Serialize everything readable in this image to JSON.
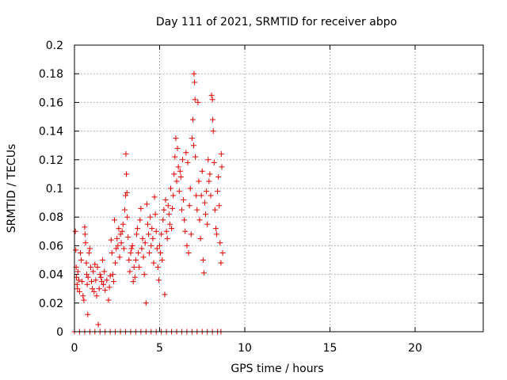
{
  "chart_data": {
    "type": "scatter",
    "title": "Day 111 of 2021, SRMTID for receiver abpo",
    "xlabel": "GPS time / hours",
    "ylabel": "SRMTID / TECUs",
    "xlim": [
      0,
      24
    ],
    "ylim": [
      0,
      0.2
    ],
    "xticks": [
      0,
      5,
      10,
      15,
      20
    ],
    "yticks": [
      0,
      0.02,
      0.04,
      0.06,
      0.08,
      0.1,
      0.12,
      0.14,
      0.16,
      0.18,
      0.2
    ],
    "ytick_labels": [
      "0",
      "0.02",
      "0.04",
      "0.06",
      "0.08",
      "0.1",
      "0.12",
      "0.14",
      "0.16",
      "0.18",
      "0.2"
    ],
    "grid": true,
    "marker": "+",
    "color": "#e00000",
    "series": [
      {
        "name": "SRMTID",
        "points": [
          [
            0.05,
            0.07
          ],
          [
            0.08,
            0.057
          ],
          [
            0.1,
            0.045
          ],
          [
            0.12,
            0.038
          ],
          [
            0.15,
            0.033
          ],
          [
            0.18,
            0.03
          ],
          [
            0.2,
            0.042
          ],
          [
            0.25,
            0.036
          ],
          [
            0.3,
            0.028
          ],
          [
            0.35,
            0.055
          ],
          [
            0.4,
            0.05
          ],
          [
            0.45,
            0.035
          ],
          [
            0.5,
            0.025
          ],
          [
            0.55,
            0.022
          ],
          [
            0.6,
            0.073
          ],
          [
            0.62,
            0.068
          ],
          [
            0.65,
            0.062
          ],
          [
            0.7,
            0.048
          ],
          [
            0.72,
            0.04
          ],
          [
            0.75,
            0.033
          ],
          [
            0.78,
            0.012
          ],
          [
            0.8,
            0.038
          ],
          [
            0.85,
            0.055
          ],
          [
            0.9,
            0.058
          ],
          [
            0.95,
            0.045
          ],
          [
            1.0,
            0.035
          ],
          [
            1.05,
            0.03
          ],
          [
            1.1,
            0.042
          ],
          [
            1.15,
            0.028
          ],
          [
            1.2,
            0.047
          ],
          [
            1.25,
            0.036
          ],
          [
            1.3,
            0.025
          ],
          [
            1.35,
            0.045
          ],
          [
            1.4,
            0.005
          ],
          [
            1.45,
            0.03
          ],
          [
            1.5,
            0.04
          ],
          [
            1.55,
            0.038
          ],
          [
            1.6,
            0.035
          ],
          [
            1.65,
            0.05
          ],
          [
            1.7,
            0.033
          ],
          [
            1.75,
            0.042
          ],
          [
            1.8,
            0.029
          ],
          [
            1.9,
            0.036
          ],
          [
            2.0,
            0.022
          ],
          [
            2.05,
            0.031
          ],
          [
            2.1,
            0.039
          ],
          [
            2.15,
            0.064
          ],
          [
            2.2,
            0.055
          ],
          [
            2.25,
            0.04
          ],
          [
            2.3,
            0.035
          ],
          [
            2.35,
            0.078
          ],
          [
            2.4,
            0.048
          ],
          [
            2.45,
            0.058
          ],
          [
            2.5,
            0.065
          ],
          [
            2.55,
            0.06
          ],
          [
            2.6,
            0.072
          ],
          [
            2.65,
            0.052
          ],
          [
            2.7,
            0.068
          ],
          [
            2.75,
            0.062
          ],
          [
            2.8,
            0.07
          ],
          [
            2.85,
            0.075
          ],
          [
            2.9,
            0.058
          ],
          [
            2.95,
            0.085
          ],
          [
            3.0,
            0.095
          ],
          [
            3.02,
            0.124
          ],
          [
            3.05,
            0.11
          ],
          [
            3.08,
            0.097
          ],
          [
            3.1,
            0.08
          ],
          [
            3.15,
            0.066
          ],
          [
            3.2,
            0.05
          ],
          [
            3.25,
            0.042
          ],
          [
            3.3,
            0.055
          ],
          [
            3.35,
            0.058
          ],
          [
            3.4,
            0.06
          ],
          [
            3.45,
            0.035
          ],
          [
            3.5,
            0.045
          ],
          [
            3.55,
            0.038
          ],
          [
            3.6,
            0.05
          ],
          [
            3.65,
            0.068
          ],
          [
            3.7,
            0.072
          ],
          [
            3.75,
            0.055
          ],
          [
            3.8,
            0.045
          ],
          [
            3.85,
            0.078
          ],
          [
            3.9,
            0.086
          ],
          [
            3.95,
            0.058
          ],
          [
            4.0,
            0.065
          ],
          [
            4.05,
            0.052
          ],
          [
            4.1,
            0.04
          ],
          [
            4.15,
            0.062
          ],
          [
            4.2,
            0.02
          ],
          [
            4.25,
            0.089
          ],
          [
            4.3,
            0.075
          ],
          [
            4.35,
            0.068
          ],
          [
            4.4,
            0.055
          ],
          [
            4.45,
            0.08
          ],
          [
            4.5,
            0.06
          ],
          [
            4.55,
            0.072
          ],
          [
            4.6,
            0.065
          ],
          [
            4.65,
            0.048
          ],
          [
            4.7,
            0.094
          ],
          [
            4.75,
            0.082
          ],
          [
            4.8,
            0.07
          ],
          [
            4.85,
            0.058
          ],
          [
            4.9,
            0.045
          ],
          [
            4.95,
            0.036
          ],
          [
            5.0,
            0.06
          ],
          [
            5.05,
            0.055
          ],
          [
            5.1,
            0.068
          ],
          [
            5.15,
            0.05
          ],
          [
            5.2,
            0.078
          ],
          [
            5.25,
            0.085
          ],
          [
            5.3,
            0.026
          ],
          [
            5.35,
            0.092
          ],
          [
            5.4,
            0.07
          ],
          [
            5.45,
            0.065
          ],
          [
            5.5,
            0.088
          ],
          [
            5.55,
            0.082
          ],
          [
            5.6,
            0.075
          ],
          [
            5.65,
            0.1
          ],
          [
            5.7,
            0.072
          ],
          [
            5.75,
            0.086
          ],
          [
            5.8,
            0.095
          ],
          [
            5.85,
            0.11
          ],
          [
            5.9,
            0.122
          ],
          [
            5.95,
            0.135
          ],
          [
            6.0,
            0.105
          ],
          [
            6.05,
            0.128
          ],
          [
            6.1,
            0.115
          ],
          [
            6.15,
            0.098
          ],
          [
            6.2,
            0.112
          ],
          [
            6.25,
            0.108
          ],
          [
            6.3,
            0.085
          ],
          [
            6.35,
            0.12
          ],
          [
            6.4,
            0.092
          ],
          [
            6.45,
            0.078
          ],
          [
            6.5,
            0.07
          ],
          [
            6.55,
            0.125
          ],
          [
            6.6,
            0.06
          ],
          [
            6.65,
            0.118
          ],
          [
            6.7,
            0.055
          ],
          [
            6.75,
            0.088
          ],
          [
            6.8,
            0.1
          ],
          [
            6.85,
            0.068
          ],
          [
            6.9,
            0.135
          ],
          [
            6.95,
            0.148
          ],
          [
            7.0,
            0.13
          ],
          [
            7.02,
            0.18
          ],
          [
            7.05,
            0.174
          ],
          [
            7.08,
            0.162
          ],
          [
            7.1,
            0.122
          ],
          [
            7.15,
            0.095
          ],
          [
            7.2,
            0.085
          ],
          [
            7.25,
            0.16
          ],
          [
            7.3,
            0.105
          ],
          [
            7.35,
            0.078
          ],
          [
            7.4,
            0.065
          ],
          [
            7.45,
            0.095
          ],
          [
            7.5,
            0.112
          ],
          [
            7.55,
            0.05
          ],
          [
            7.6,
            0.041
          ],
          [
            7.65,
            0.09
          ],
          [
            7.7,
            0.082
          ],
          [
            7.75,
            0.098
          ],
          [
            7.8,
            0.075
          ],
          [
            7.85,
            0.12
          ],
          [
            7.9,
            0.105
          ],
          [
            7.95,
            0.11
          ],
          [
            8.0,
            0.095
          ],
          [
            8.05,
            0.165
          ],
          [
            8.1,
            0.162
          ],
          [
            8.12,
            0.148
          ],
          [
            8.15,
            0.14
          ],
          [
            8.2,
            0.118
          ],
          [
            8.25,
            0.085
          ],
          [
            8.3,
            0.072
          ],
          [
            8.35,
            0.068
          ],
          [
            8.4,
            0.098
          ],
          [
            8.45,
            0.108
          ],
          [
            8.5,
            0.088
          ],
          [
            8.55,
            0.062
          ],
          [
            8.6,
            0.048
          ],
          [
            8.62,
            0.124
          ],
          [
            8.65,
            0.115
          ],
          [
            8.7,
            0.055
          ],
          [
            0.0,
            0
          ],
          [
            0.3,
            0
          ],
          [
            0.6,
            0
          ],
          [
            0.9,
            0
          ],
          [
            1.2,
            0
          ],
          [
            1.5,
            0
          ],
          [
            1.8,
            0
          ],
          [
            2.1,
            0
          ],
          [
            2.4,
            0
          ],
          [
            2.7,
            0
          ],
          [
            3.0,
            0
          ],
          [
            3.3,
            0
          ],
          [
            3.6,
            0
          ],
          [
            3.9,
            0
          ],
          [
            4.2,
            0
          ],
          [
            4.5,
            0
          ],
          [
            4.8,
            0
          ],
          [
            5.1,
            0
          ],
          [
            5.4,
            0
          ],
          [
            5.7,
            0
          ],
          [
            6.0,
            0
          ],
          [
            6.3,
            0
          ],
          [
            6.6,
            0
          ],
          [
            6.9,
            0
          ],
          [
            7.2,
            0
          ],
          [
            7.5,
            0
          ],
          [
            7.8,
            0
          ],
          [
            8.1,
            0
          ],
          [
            8.4,
            0
          ],
          [
            8.6,
            0
          ]
        ]
      }
    ]
  }
}
